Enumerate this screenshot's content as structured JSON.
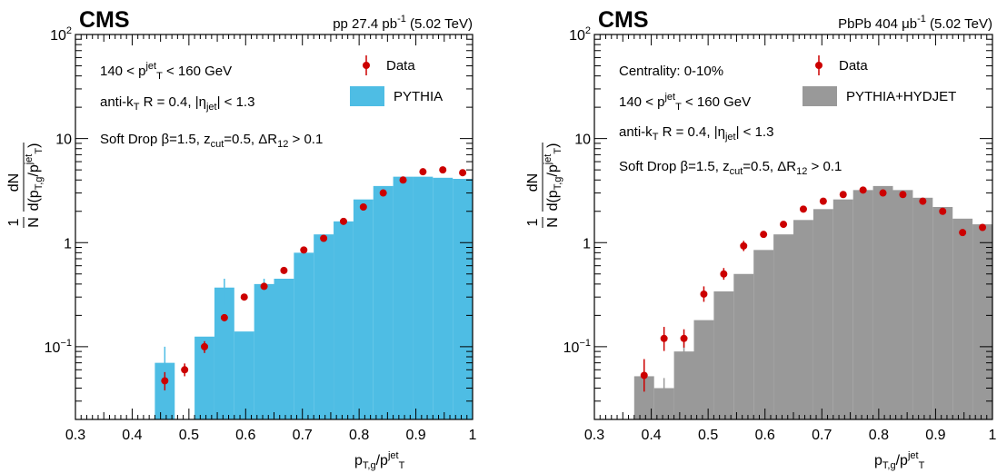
{
  "chart_data": [
    {
      "type": "bar",
      "experiment": "CMS",
      "header_parts": [
        "pp 27.4 pb",
        "-1",
        " (5.02 TeV)"
      ],
      "xlim": [
        0.3,
        1.0
      ],
      "ylim": [
        0.02,
        100
      ],
      "y_scale": "log",
      "grid": false,
      "legend_position": "top-right",
      "x_ticks": [
        "0.3",
        "0.4",
        "0.5",
        "0.6",
        "0.7",
        "0.8",
        "0.9",
        "1"
      ],
      "xlabel": {
        "main": "p",
        "sub": "T,g",
        "after": "/p",
        "sup": "jet",
        "sub2": "T"
      },
      "ylabel": "1/N dN/d(p_T,g/p_T^jet)",
      "legend": {
        "data": "Data",
        "mc": "PYTHIA",
        "mc_color": "#4ebde4"
      },
      "annotations": [
        [
          {
            "t": "140 < p"
          },
          {
            "t": "jet",
            "s": "sup"
          },
          {
            "t": "T",
            "s": "sub"
          },
          {
            "t": " < 160 GeV"
          }
        ],
        [
          {
            "t": "anti-k"
          },
          {
            "t": "T",
            "s": "sub"
          },
          {
            "t": " R = 0.4, |η"
          },
          {
            "t": "jet",
            "s": "sub"
          },
          {
            "t": "| < 1.3"
          }
        ],
        [
          {
            "t": "Soft Drop β=1.5, z"
          },
          {
            "t": "cut",
            "s": "sub"
          },
          {
            "t": "=0.5, ΔR"
          },
          {
            "t": "12",
            "s": "sub"
          },
          {
            "t": " > 0.1"
          }
        ]
      ],
      "mc_bins": [
        {
          "x0": 0.44,
          "x1": 0.475,
          "y": 0.07,
          "err": [
            0.045,
            0.1
          ]
        },
        {
          "x0": 0.475,
          "x1": 0.51,
          "y": 0.0
        },
        {
          "x0": 0.51,
          "x1": 0.545,
          "y": 0.125
        },
        {
          "x0": 0.545,
          "x1": 0.58,
          "y": 0.37,
          "err": [
            0.25,
            0.45
          ]
        },
        {
          "x0": 0.58,
          "x1": 0.615,
          "y": 0.14
        },
        {
          "x0": 0.615,
          "x1": 0.65,
          "y": 0.4,
          "err": [
            0.36,
            0.45
          ]
        },
        {
          "x0": 0.65,
          "x1": 0.685,
          "y": 0.45
        },
        {
          "x0": 0.685,
          "x1": 0.72,
          "y": 0.8
        },
        {
          "x0": 0.72,
          "x1": 0.755,
          "y": 1.2
        },
        {
          "x0": 0.755,
          "x1": 0.79,
          "y": 1.6
        },
        {
          "x0": 0.79,
          "x1": 0.825,
          "y": 2.6
        },
        {
          "x0": 0.825,
          "x1": 0.86,
          "y": 3.5
        },
        {
          "x0": 0.86,
          "x1": 0.895,
          "y": 4.3
        },
        {
          "x0": 0.895,
          "x1": 0.93,
          "y": 4.3
        },
        {
          "x0": 0.93,
          "x1": 0.965,
          "y": 4.2
        },
        {
          "x0": 0.965,
          "x1": 1.0,
          "y": 4.1
        }
      ],
      "data_points": [
        {
          "x": 0.4575,
          "y": 0.047,
          "lo": 0.038,
          "hi": 0.057
        },
        {
          "x": 0.4925,
          "y": 0.06,
          "lo": 0.052,
          "hi": 0.069
        },
        {
          "x": 0.5275,
          "y": 0.1,
          "lo": 0.087,
          "hi": 0.113
        },
        {
          "x": 0.5625,
          "y": 0.19,
          "lo": 0.175,
          "hi": 0.205
        },
        {
          "x": 0.5975,
          "y": 0.3
        },
        {
          "x": 0.6325,
          "y": 0.38
        },
        {
          "x": 0.6675,
          "y": 0.54
        },
        {
          "x": 0.7025,
          "y": 0.85
        },
        {
          "x": 0.7375,
          "y": 1.1
        },
        {
          "x": 0.7725,
          "y": 1.6
        },
        {
          "x": 0.8075,
          "y": 2.2
        },
        {
          "x": 0.8425,
          "y": 3.0
        },
        {
          "x": 0.8775,
          "y": 4.0
        },
        {
          "x": 0.9125,
          "y": 4.8
        },
        {
          "x": 0.9475,
          "y": 5.0
        },
        {
          "x": 0.9825,
          "y": 4.7
        }
      ]
    },
    {
      "type": "bar",
      "experiment": "CMS",
      "header_parts": [
        "PbPb 404 μb",
        "-1",
        " (5.02 TeV)"
      ],
      "xlim": [
        0.3,
        1.0
      ],
      "ylim": [
        0.02,
        100
      ],
      "y_scale": "log",
      "grid": false,
      "legend_position": "top-right",
      "x_ticks": [
        "0.3",
        "0.4",
        "0.5",
        "0.6",
        "0.7",
        "0.8",
        "0.9",
        "1"
      ],
      "xlabel": {
        "main": "p",
        "sub": "T,g",
        "after": "/p",
        "sup": "jet",
        "sub2": "T"
      },
      "ylabel": "1/N dN/d(p_T,g/p_T^jet)",
      "legend": {
        "data": "Data",
        "mc": "PYTHIA+HYDJET",
        "mc_color": "#999999"
      },
      "annotations": [
        [
          {
            "t": "Centrality: 0-10%"
          }
        ],
        [
          {
            "t": "140 < p"
          },
          {
            "t": "jet",
            "s": "sup"
          },
          {
            "t": "T",
            "s": "sub"
          },
          {
            "t": " < 160 GeV"
          }
        ],
        [
          {
            "t": "anti-k"
          },
          {
            "t": "T",
            "s": "sub"
          },
          {
            "t": " R = 0.4, |η"
          },
          {
            "t": "jet",
            "s": "sub"
          },
          {
            "t": "| < 1.3"
          }
        ],
        [
          {
            "t": "Soft Drop β=1.5, z"
          },
          {
            "t": "cut",
            "s": "sub"
          },
          {
            "t": "=0.5, ΔR"
          },
          {
            "t": "12",
            "s": "sub"
          },
          {
            "t": " > 0.1"
          }
        ]
      ],
      "mc_bins": [
        {
          "x0": 0.37,
          "x1": 0.405,
          "y": 0.052
        },
        {
          "x0": 0.405,
          "x1": 0.44,
          "y": 0.04,
          "err": [
            0.033,
            0.05
          ]
        },
        {
          "x0": 0.44,
          "x1": 0.475,
          "y": 0.09,
          "err": [
            0.075,
            0.11
          ]
        },
        {
          "x0": 0.475,
          "x1": 0.51,
          "y": 0.18
        },
        {
          "x0": 0.51,
          "x1": 0.545,
          "y": 0.34
        },
        {
          "x0": 0.545,
          "x1": 0.58,
          "y": 0.5
        },
        {
          "x0": 0.58,
          "x1": 0.615,
          "y": 0.85
        },
        {
          "x0": 0.615,
          "x1": 0.65,
          "y": 1.2
        },
        {
          "x0": 0.65,
          "x1": 0.685,
          "y": 1.65
        },
        {
          "x0": 0.685,
          "x1": 0.72,
          "y": 2.1
        },
        {
          "x0": 0.72,
          "x1": 0.755,
          "y": 2.6
        },
        {
          "x0": 0.755,
          "x1": 0.79,
          "y": 3.2
        },
        {
          "x0": 0.79,
          "x1": 0.825,
          "y": 3.5
        },
        {
          "x0": 0.825,
          "x1": 0.86,
          "y": 3.2
        },
        {
          "x0": 0.86,
          "x1": 0.895,
          "y": 2.7
        },
        {
          "x0": 0.895,
          "x1": 0.93,
          "y": 2.2
        },
        {
          "x0": 0.93,
          "x1": 0.965,
          "y": 1.7
        },
        {
          "x0": 0.965,
          "x1": 1.0,
          "y": 1.5
        }
      ],
      "data_points": [
        {
          "x": 0.3875,
          "y": 0.053,
          "lo": 0.037,
          "hi": 0.076
        },
        {
          "x": 0.4225,
          "y": 0.12,
          "lo": 0.091,
          "hi": 0.155
        },
        {
          "x": 0.4575,
          "y": 0.12,
          "lo": 0.098,
          "hi": 0.147
        },
        {
          "x": 0.4925,
          "y": 0.32,
          "lo": 0.27,
          "hi": 0.38
        },
        {
          "x": 0.5275,
          "y": 0.5,
          "lo": 0.44,
          "hi": 0.57
        },
        {
          "x": 0.5625,
          "y": 0.93,
          "lo": 0.83,
          "hi": 1.04
        },
        {
          "x": 0.5975,
          "y": 1.2
        },
        {
          "x": 0.6325,
          "y": 1.5
        },
        {
          "x": 0.6675,
          "y": 2.1
        },
        {
          "x": 0.7025,
          "y": 2.5
        },
        {
          "x": 0.7375,
          "y": 2.9
        },
        {
          "x": 0.7725,
          "y": 3.2
        },
        {
          "x": 0.8075,
          "y": 3.0
        },
        {
          "x": 0.8425,
          "y": 2.9
        },
        {
          "x": 0.8775,
          "y": 2.5
        },
        {
          "x": 0.9125,
          "y": 2.0
        },
        {
          "x": 0.9475,
          "y": 1.25
        },
        {
          "x": 0.9825,
          "y": 1.4
        }
      ]
    }
  ]
}
